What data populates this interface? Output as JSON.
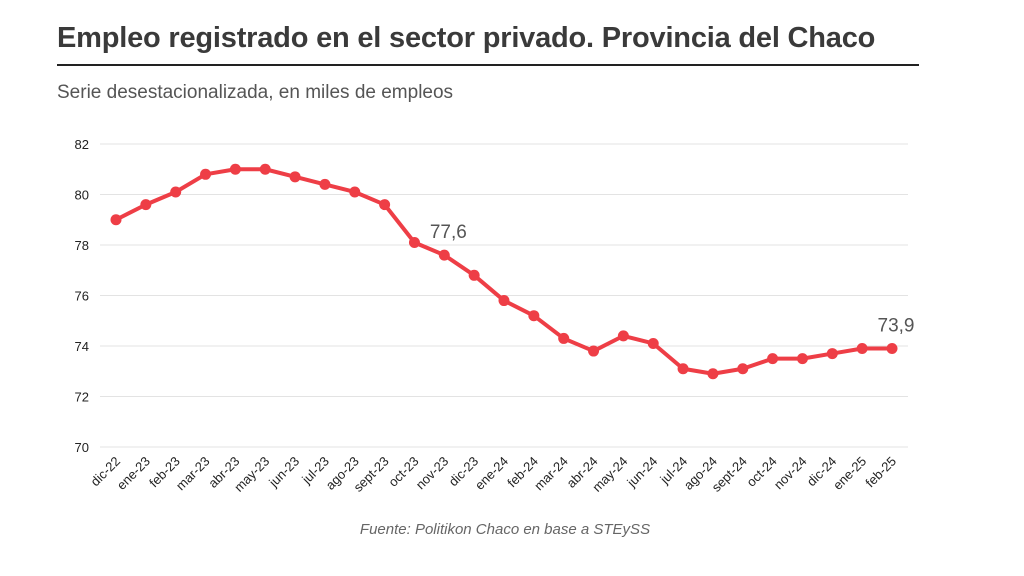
{
  "title": "Empleo registrado en el sector privado. Provincia del Chaco",
  "subtitle": "Serie desestacionalizada, en miles de empleos",
  "source": "Fuente: Politikon Chaco en base a STEySS",
  "colors": {
    "line": "#ee3e46",
    "grid": "#e3e3e3",
    "title_rule": "#222222"
  },
  "chart_data": {
    "type": "line",
    "categories": [
      "dic-22",
      "ene-23",
      "feb-23",
      "mar-23",
      "abr-23",
      "may-23",
      "jun-23",
      "jul-23",
      "ago-23",
      "sept-23",
      "oct-23",
      "nov-23",
      "dic-23",
      "ene-24",
      "feb-24",
      "mar-24",
      "abr-24",
      "may-24",
      "jun-24",
      "jul-24",
      "ago-24",
      "sept-24",
      "oct-24",
      "nov-24",
      "dic-24",
      "ene-25",
      "feb-25"
    ],
    "series": [
      {
        "values": [
          79.0,
          79.6,
          80.1,
          80.8,
          81.0,
          81.0,
          80.7,
          80.4,
          80.1,
          79.6,
          78.1,
          77.6,
          76.8,
          75.8,
          75.2,
          74.3,
          73.8,
          74.4,
          74.1,
          73.1,
          72.9,
          73.1,
          73.5,
          73.5,
          73.7,
          73.9,
          73.9
        ]
      }
    ],
    "ylim": [
      70,
      82
    ],
    "yticks": [
      "70",
      "72",
      "74",
      "76",
      "78",
      "80",
      "82"
    ],
    "grid": true,
    "annotations": [
      {
        "index": 11,
        "text": "77,6"
      },
      {
        "index": 26,
        "text": "73,9"
      }
    ]
  }
}
